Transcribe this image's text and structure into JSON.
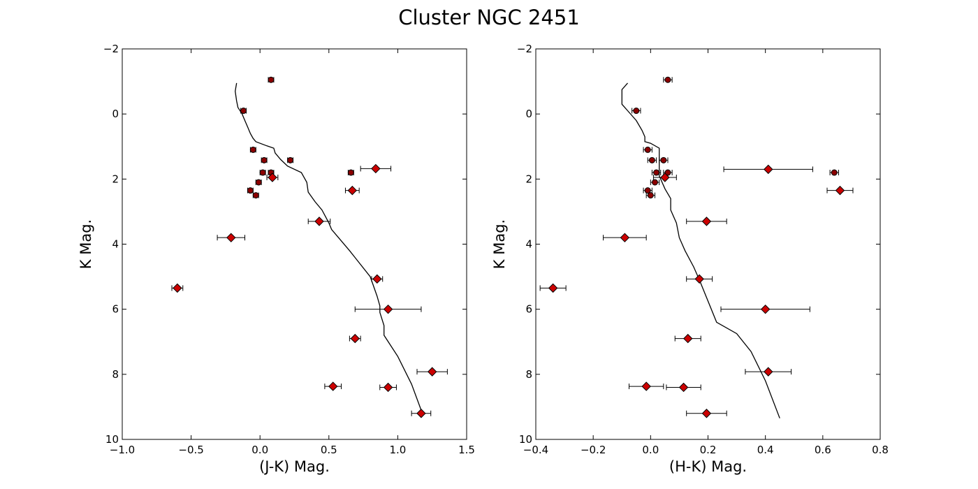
{
  "figure": {
    "title": "Cluster NGC 2451"
  },
  "chart_data": [
    {
      "type": "scatter",
      "xlabel": "(J-K) Mag.",
      "ylabel": "K Mag.",
      "xlim": [
        -1.0,
        1.5
      ],
      "ylim": [
        10,
        -2
      ],
      "y_inverted": true,
      "grid": false,
      "xticks": [
        -1.0,
        -0.5,
        0.0,
        0.5,
        1.0,
        1.5
      ],
      "xtick_labels": [
        "−1.0",
        "−0.5",
        "0.0",
        "0.5",
        "1.0",
        "1.5"
      ],
      "yticks": [
        -2,
        0,
        2,
        4,
        6,
        8,
        10
      ],
      "ytick_labels": [
        "−2",
        "0",
        "2",
        "4",
        "6",
        "8",
        "10"
      ],
      "isochrone": {
        "x": [
          -0.17,
          -0.18,
          -0.17,
          -0.16,
          -0.13,
          -0.11,
          -0.09,
          -0.07,
          -0.05,
          -0.03,
          0.05,
          0.1,
          0.11,
          0.15,
          0.2,
          0.3,
          0.34,
          0.35,
          0.4,
          0.45,
          0.5,
          0.52,
          0.57,
          0.65,
          0.8,
          0.85,
          0.87,
          0.87,
          0.9,
          0.9,
          1.0,
          1.1,
          1.17
        ],
        "y": [
          -0.95,
          -0.7,
          -0.4,
          -0.2,
          0.0,
          0.2,
          0.4,
          0.6,
          0.75,
          0.85,
          0.98,
          1.05,
          1.2,
          1.4,
          1.6,
          1.8,
          2.1,
          2.4,
          2.7,
          2.95,
          3.35,
          3.55,
          3.8,
          4.2,
          5.0,
          5.6,
          5.9,
          6.1,
          6.5,
          6.8,
          7.45,
          8.3,
          9.1
        ]
      },
      "series": [
        {
          "marker": "circle",
          "color": "#8b0000",
          "points": [
            {
              "x": 0.08,
              "y": -1.05,
              "xerr": 0.02
            },
            {
              "x": -0.12,
              "y": -0.1,
              "xerr": 0.02
            },
            {
              "x": -0.05,
              "y": 1.1,
              "xerr": 0.02
            },
            {
              "x": 0.03,
              "y": 1.42,
              "xerr": 0.02
            },
            {
              "x": 0.22,
              "y": 1.42,
              "xerr": 0.02
            },
            {
              "x": 0.02,
              "y": 1.8,
              "xerr": 0.02
            },
            {
              "x": 0.08,
              "y": 1.8,
              "xerr": 0.02
            },
            {
              "x": 0.66,
              "y": 1.8,
              "xerr": 0.02
            },
            {
              "x": -0.01,
              "y": 2.1,
              "xerr": 0.02
            },
            {
              "x": -0.07,
              "y": 2.35,
              "xerr": 0.02
            },
            {
              "x": -0.03,
              "y": 2.5,
              "xerr": 0.02
            }
          ]
        },
        {
          "marker": "diamond",
          "color": "#cc0000",
          "points": [
            {
              "x": 0.84,
              "y": 1.68,
              "xerr": 0.11
            },
            {
              "x": 0.09,
              "y": 1.95,
              "xerr": 0.04
            },
            {
              "x": 0.67,
              "y": 2.35,
              "xerr": 0.05
            },
            {
              "x": 0.43,
              "y": 3.3,
              "xerr": 0.08
            },
            {
              "x": -0.21,
              "y": 3.8,
              "xerr": 0.1
            },
            {
              "x": -0.6,
              "y": 5.35,
              "xerr": 0.04
            },
            {
              "x": 0.85,
              "y": 5.07,
              "xerr": 0.04
            },
            {
              "x": 0.93,
              "y": 6.0,
              "xerr": 0.24
            },
            {
              "x": 0.69,
              "y": 6.9,
              "xerr": 0.04
            },
            {
              "x": 1.25,
              "y": 7.92,
              "xerr": 0.11
            },
            {
              "x": 0.53,
              "y": 8.37,
              "xerr": 0.06
            },
            {
              "x": 0.93,
              "y": 8.4,
              "xerr": 0.06
            },
            {
              "x": 1.17,
              "y": 9.2,
              "xerr": 0.07
            }
          ]
        }
      ]
    },
    {
      "type": "scatter",
      "xlabel": "(H-K) Mag.",
      "ylabel": "K Mag.",
      "xlim": [
        -0.4,
        0.8
      ],
      "ylim": [
        10,
        -2
      ],
      "y_inverted": true,
      "grid": false,
      "xticks": [
        -0.4,
        -0.2,
        0.0,
        0.2,
        0.4,
        0.6,
        0.8
      ],
      "xtick_labels": [
        "−0.4",
        "−0.2",
        "0.0",
        "0.2",
        "0.4",
        "0.6",
        "0.8"
      ],
      "yticks": [
        -2,
        0,
        2,
        4,
        6,
        8,
        10
      ],
      "ytick_labels": [
        "−2",
        "0",
        "2",
        "4",
        "6",
        "8",
        "10"
      ],
      "isochrone": {
        "x": [
          -0.08,
          -0.1,
          -0.1,
          -0.08,
          -0.05,
          -0.03,
          -0.02,
          -0.02,
          0.0,
          0.03,
          0.03,
          0.05,
          0.07,
          0.07,
          0.09,
          0.1,
          0.12,
          0.15,
          0.17,
          0.2,
          0.23,
          0.3,
          0.35,
          0.4,
          0.45
        ],
        "y": [
          -0.95,
          -0.75,
          -0.3,
          -0.1,
          0.2,
          0.5,
          0.7,
          0.85,
          0.9,
          1.05,
          1.9,
          2.3,
          2.6,
          2.95,
          3.35,
          3.8,
          4.2,
          4.7,
          5.1,
          5.75,
          6.4,
          6.75,
          7.3,
          8.2,
          9.35
        ]
      },
      "series": [
        {
          "marker": "circle",
          "color": "#8b0000",
          "points": [
            {
              "x": 0.06,
              "y": -1.05,
              "xerr": 0.015
            },
            {
              "x": -0.05,
              "y": -0.1,
              "xerr": 0.015
            },
            {
              "x": -0.01,
              "y": 1.1,
              "xerr": 0.015
            },
            {
              "x": 0.005,
              "y": 1.42,
              "xerr": 0.015
            },
            {
              "x": 0.045,
              "y": 1.42,
              "xerr": 0.015
            },
            {
              "x": 0.02,
              "y": 1.8,
              "xerr": 0.015
            },
            {
              "x": 0.06,
              "y": 1.8,
              "xerr": 0.015
            },
            {
              "x": 0.64,
              "y": 1.8,
              "xerr": 0.015
            },
            {
              "x": 0.015,
              "y": 2.1,
              "xerr": 0.015
            },
            {
              "x": -0.01,
              "y": 2.35,
              "xerr": 0.015
            },
            {
              "x": 0.0,
              "y": 2.5,
              "xerr": 0.015
            }
          ]
        },
        {
          "marker": "diamond",
          "color": "#cc0000",
          "points": [
            {
              "x": 0.41,
              "y": 1.7,
              "xerr": 0.155
            },
            {
              "x": 0.05,
              "y": 1.95,
              "xerr": 0.04
            },
            {
              "x": 0.66,
              "y": 2.35,
              "xerr": 0.045
            },
            {
              "x": 0.195,
              "y": 3.3,
              "xerr": 0.07
            },
            {
              "x": -0.09,
              "y": 3.8,
              "xerr": 0.075
            },
            {
              "x": -0.34,
              "y": 5.35,
              "xerr": 0.045
            },
            {
              "x": 0.17,
              "y": 5.07,
              "xerr": 0.045
            },
            {
              "x": 0.4,
              "y": 6.0,
              "xerr": 0.155
            },
            {
              "x": 0.13,
              "y": 6.9,
              "xerr": 0.045
            },
            {
              "x": 0.41,
              "y": 7.92,
              "xerr": 0.08
            },
            {
              "x": -0.015,
              "y": 8.37,
              "xerr": 0.06
            },
            {
              "x": 0.115,
              "y": 8.4,
              "xerr": 0.06
            },
            {
              "x": 0.195,
              "y": 9.2,
              "xerr": 0.07
            }
          ]
        }
      ]
    }
  ]
}
